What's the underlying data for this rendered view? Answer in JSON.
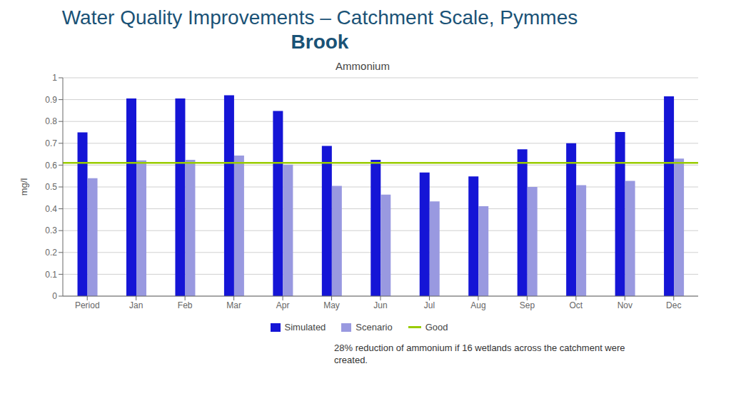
{
  "chart_data": {
    "type": "bar",
    "suptitle": [
      "Water Quality Improvements – Catchment Scale, Pymmes",
      "Brook"
    ],
    "title": "Ammonium",
    "ylabel": "mg/l",
    "categories": [
      "Period",
      "Jan",
      "Feb",
      "Mar",
      "Apr",
      "May",
      "Jun",
      "Jul",
      "Aug",
      "Sep",
      "Oct",
      "Nov",
      "Dec"
    ],
    "series": [
      {
        "name": "Simulated",
        "color": "#1515d6",
        "values": [
          0.75,
          0.905,
          0.905,
          0.92,
          0.848,
          0.688,
          0.624,
          0.566,
          0.548,
          0.672,
          0.7,
          0.752,
          0.915
        ]
      },
      {
        "name": "Scenario",
        "color": "#9999e0",
        "values": [
          0.54,
          0.622,
          0.624,
          0.644,
          0.602,
          0.505,
          0.465,
          0.434,
          0.412,
          0.5,
          0.508,
          0.528,
          0.63
        ]
      }
    ],
    "reference_line": {
      "name": "Good",
      "value": 0.61,
      "color": "#99cc00"
    },
    "ylim": [
      0,
      1.0
    ],
    "yticks": [
      0,
      0.1,
      0.2,
      0.3,
      0.4,
      0.5,
      0.6,
      0.7,
      0.8,
      0.9,
      1
    ],
    "grid": "y",
    "legend": "bottom",
    "annotation": "28% reduction of ammonium if 16 wetlands across the catchment were\ncreated."
  }
}
